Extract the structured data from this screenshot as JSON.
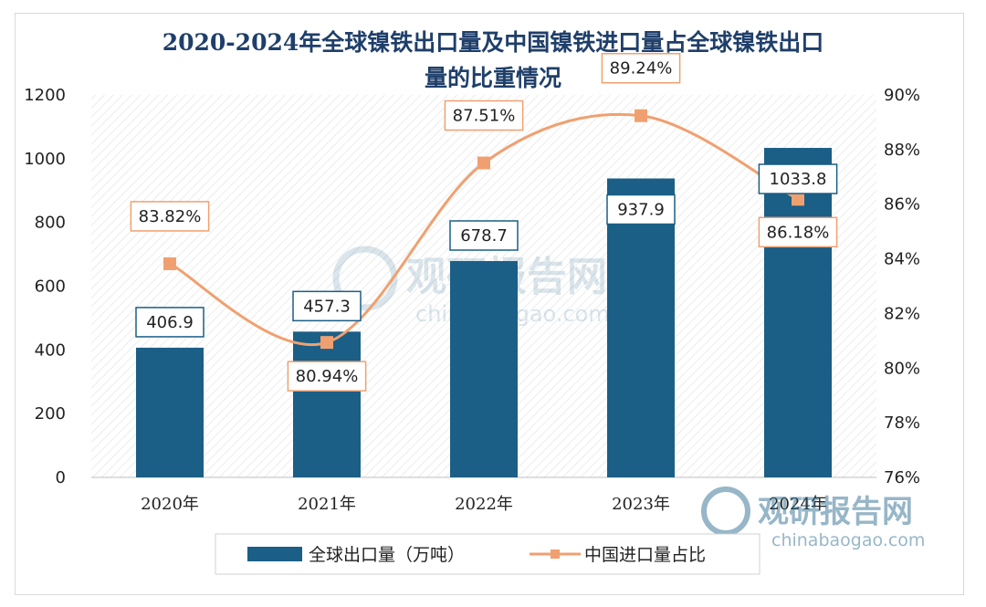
{
  "chart_data": {
    "type": "bar+line",
    "title_lines": [
      "2020-2024年全球镍铁出口量及中国镍铁进口量占全球镍铁出口",
      "量的比重情况"
    ],
    "categories": [
      "2020年",
      "2021年",
      "2022年",
      "2023年",
      "2024年"
    ],
    "series": [
      {
        "name": "全球出口量（万吨）",
        "type": "bar",
        "axis": "left",
        "color": "#1b5e86",
        "values": [
          406.9,
          457.3,
          678.7,
          937.9,
          1033.8
        ],
        "labels": [
          "406.9",
          "457.3",
          "678.7",
          "937.9",
          "1033.8"
        ]
      },
      {
        "name": "中国进口量占比",
        "type": "line",
        "axis": "right",
        "color": "#f0a070",
        "values": [
          83.82,
          80.94,
          87.51,
          89.24,
          86.18
        ],
        "labels": [
          "83.82%",
          "80.94%",
          "87.51%",
          "89.24%",
          "86.18%"
        ]
      }
    ],
    "y_left": {
      "min": 0,
      "max": 1200,
      "ticks": [
        "0",
        "200",
        "400",
        "600",
        "800",
        "1000",
        "1200"
      ]
    },
    "y_right": {
      "min": 76,
      "max": 90,
      "ticks": [
        "76%",
        "78%",
        "80%",
        "82%",
        "84%",
        "86%",
        "88%",
        "90%"
      ]
    },
    "legend_position": "bottom",
    "grid": false
  },
  "watermark": {
    "center_name": "观研报告网",
    "center_url": "chinabaogao.com",
    "corner_name": "观研报告网",
    "corner_url": "chinabaogao.com",
    "color": "#1b5e86"
  }
}
